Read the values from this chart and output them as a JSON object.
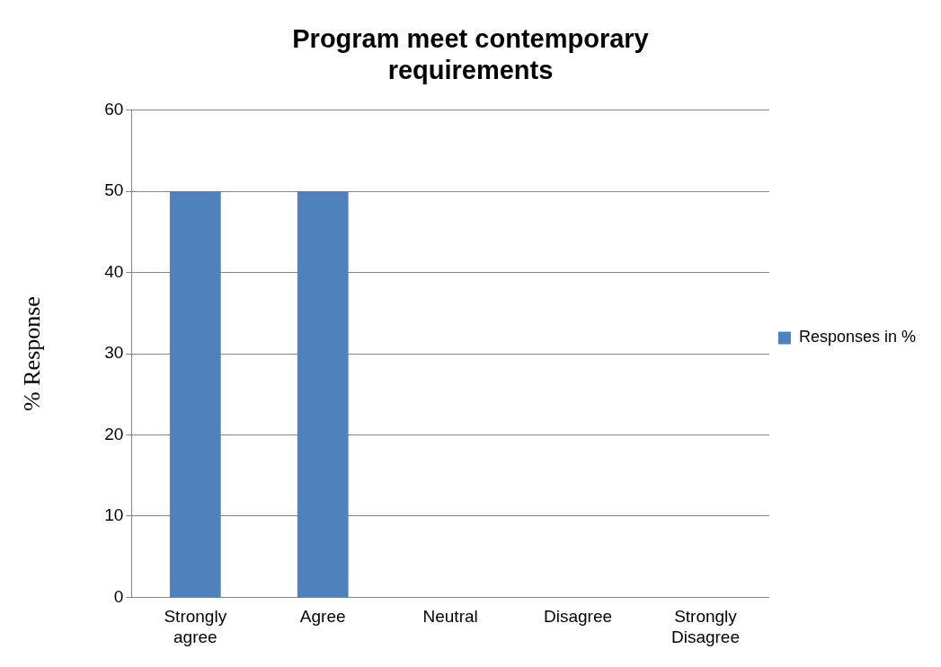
{
  "chart_data": {
    "type": "bar",
    "title": "Program meet contemporary requirements",
    "ylabel": "% Response",
    "categories": [
      "Strongly agree",
      "Agree",
      "Neutral",
      "Disagree",
      "Strongly Disagree"
    ],
    "series": [
      {
        "name": "Responses in %",
        "color": "#4f81bd",
        "values": [
          50,
          50,
          0,
          0,
          0
        ]
      }
    ],
    "ylim": [
      0,
      60
    ],
    "yticks": [
      0,
      10,
      20,
      30,
      40,
      50,
      60
    ],
    "grid": "y",
    "legend": "right"
  }
}
